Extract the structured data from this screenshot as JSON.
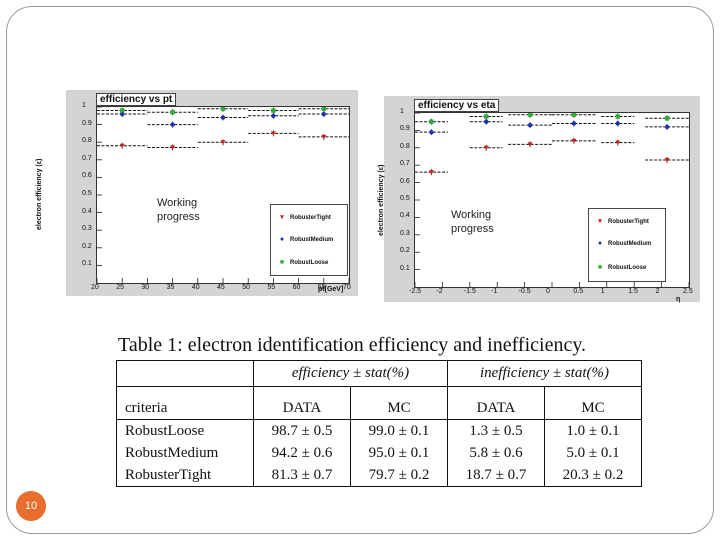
{
  "slide": {
    "number": "10"
  },
  "chart_data": [
    {
      "type": "scatter",
      "title": "efficiency vs pt",
      "xlabel": "pt[GeV]",
      "ylabel": "electron efficiency (ε)",
      "xlim": [
        20,
        70
      ],
      "ylim": [
        0,
        1
      ],
      "xticks": [
        "20",
        "25",
        "30",
        "35",
        "40",
        "45",
        "50",
        "55",
        "60",
        "65",
        "70"
      ],
      "yticks": [
        "0.1",
        "0.2",
        "0.3",
        "0.4",
        "0.5",
        "0.6",
        "0.7",
        "0.8",
        "0.9",
        "1"
      ],
      "legend": [
        "RobusterTight",
        "RobustMedium",
        "RobustLoose"
      ],
      "annotation": "Working\nprogress",
      "series": [
        {
          "name": "RobusterTight",
          "color": "#cc2222",
          "marker": "triangle",
          "points": [
            {
              "x": 25,
              "y": 0.78,
              "xerr": 5
            },
            {
              "x": 35,
              "y": 0.77,
              "xerr": 5
            },
            {
              "x": 45,
              "y": 0.8,
              "xerr": 5
            },
            {
              "x": 55,
              "y": 0.85,
              "xerr": 5
            },
            {
              "x": 65,
              "y": 0.83,
              "xerr": 5
            }
          ]
        },
        {
          "name": "RobustMedium",
          "color": "#1f2fb8",
          "marker": "circle",
          "points": [
            {
              "x": 25,
              "y": 0.96,
              "xerr": 5
            },
            {
              "x": 35,
              "y": 0.9,
              "xerr": 5
            },
            {
              "x": 45,
              "y": 0.94,
              "xerr": 5
            },
            {
              "x": 55,
              "y": 0.95,
              "xerr": 5
            },
            {
              "x": 65,
              "y": 0.96,
              "xerr": 5
            }
          ]
        },
        {
          "name": "RobustLoose",
          "color": "#2fae3a",
          "marker": "square",
          "points": [
            {
              "x": 25,
              "y": 0.98,
              "xerr": 5
            },
            {
              "x": 35,
              "y": 0.97,
              "xerr": 5
            },
            {
              "x": 45,
              "y": 0.99,
              "xerr": 5
            },
            {
              "x": 55,
              "y": 0.98,
              "xerr": 5
            },
            {
              "x": 65,
              "y": 0.99,
              "xerr": 5
            }
          ]
        }
      ]
    },
    {
      "type": "scatter",
      "title": "efficiency vs eta",
      "xlabel": "η",
      "ylabel": "electron efficiency (ε)",
      "xlim": [
        -2.5,
        2.5
      ],
      "ylim": [
        0,
        1
      ],
      "xticks": [
        "-2.5",
        "-2",
        "-1.5",
        "-1",
        "-0.5",
        "0",
        "0.5",
        "1",
        "1.5",
        "2",
        "2.5"
      ],
      "yticks": [
        "0.1",
        "0.2",
        "0.3",
        "0.4",
        "0.5",
        "0.6",
        "0.7",
        "0.8",
        "0.9",
        "1"
      ],
      "legend": [
        "RobusterTight",
        "RobustMedium",
        "RobustLoose"
      ],
      "annotation": "Working\nprogress",
      "series": [
        {
          "name": "RobusterTight",
          "color": "#cc2222",
          "marker": "triangle",
          "points": [
            {
              "x": -2.2,
              "y": 0.66,
              "xerr": 0.3
            },
            {
              "x": -1.2,
              "y": 0.8,
              "xerr": 0.3
            },
            {
              "x": -0.4,
              "y": 0.82,
              "xerr": 0.4
            },
            {
              "x": 0.4,
              "y": 0.84,
              "xerr": 0.4
            },
            {
              "x": 1.2,
              "y": 0.83,
              "xerr": 0.3
            },
            {
              "x": 2.1,
              "y": 0.73,
              "xerr": 0.4
            }
          ]
        },
        {
          "name": "RobustMedium",
          "color": "#1f2fb8",
          "marker": "circle",
          "points": [
            {
              "x": -2.2,
              "y": 0.89,
              "xerr": 0.3
            },
            {
              "x": -1.2,
              "y": 0.95,
              "xerr": 0.3
            },
            {
              "x": -0.4,
              "y": 0.93,
              "xerr": 0.4
            },
            {
              "x": 0.4,
              "y": 0.94,
              "xerr": 0.4
            },
            {
              "x": 1.2,
              "y": 0.94,
              "xerr": 0.3
            },
            {
              "x": 2.1,
              "y": 0.92,
              "xerr": 0.4
            }
          ]
        },
        {
          "name": "RobustLoose",
          "color": "#2fae3a",
          "marker": "square",
          "points": [
            {
              "x": -2.2,
              "y": 0.95,
              "xerr": 0.3
            },
            {
              "x": -1.2,
              "y": 0.98,
              "xerr": 0.3
            },
            {
              "x": -0.4,
              "y": 0.99,
              "xerr": 0.4
            },
            {
              "x": 0.4,
              "y": 0.99,
              "xerr": 0.4
            },
            {
              "x": 1.2,
              "y": 0.98,
              "xerr": 0.3
            },
            {
              "x": 2.1,
              "y": 0.97,
              "xerr": 0.4
            }
          ]
        }
      ]
    }
  ],
  "table": {
    "caption": "Table 1: electron identification efficiency and inefficiency.",
    "group_headers": [
      "efficiency ± stat(%)",
      "inefficiency ± stat(%)"
    ],
    "columns": [
      "criteria",
      "DATA",
      "MC",
      "DATA",
      "MC"
    ],
    "rows": [
      [
        "RobustLoose",
        "98.7 ± 0.5",
        "99.0 ± 0.1",
        "1.3 ± 0.5",
        "1.0 ± 0.1"
      ],
      [
        "RobustMedium",
        "94.2 ± 0.6",
        "95.0 ± 0.1",
        "5.8 ± 0.6",
        "5.0 ± 0.1"
      ],
      [
        "RobusterTight",
        "81.3 ± 0.7",
        "79.7 ± 0.2",
        "18.7 ± 0.7",
        "20.3 ± 0.2"
      ]
    ]
  }
}
